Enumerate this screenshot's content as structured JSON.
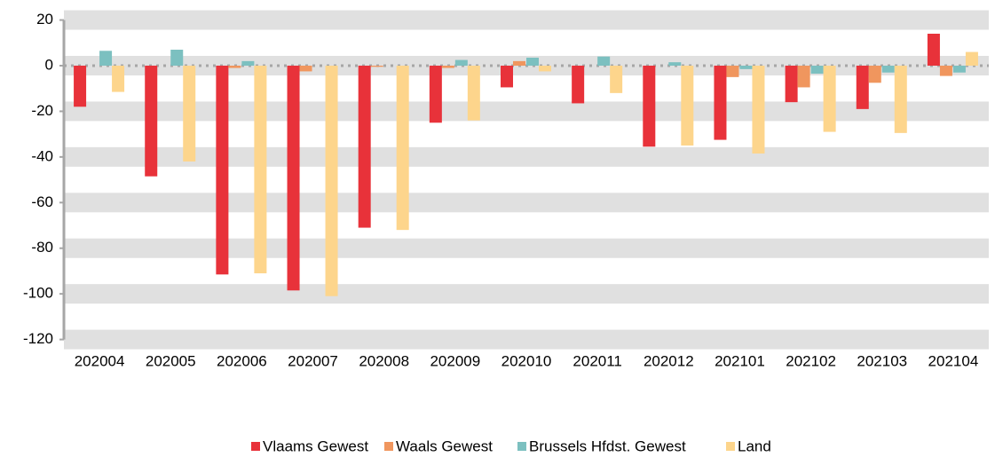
{
  "chart_data": {
    "type": "bar",
    "categories": [
      "202004",
      "202005",
      "202006",
      "202007",
      "202008",
      "202009",
      "202010",
      "202011",
      "202012",
      "202101",
      "202102",
      "202103",
      "202104"
    ],
    "series": [
      {
        "name": "Vlaams Gewest",
        "color": "#e8323a",
        "values": [
          -18,
          -48.5,
          -91.5,
          -98.5,
          -71,
          -25,
          -9.5,
          -16.5,
          -35.5,
          -32.5,
          -16,
          -19,
          14
        ]
      },
      {
        "name": "Waals Gewest",
        "color": "#f0965e",
        "values": [
          0,
          0,
          -1,
          -2.5,
          -0.5,
          -1,
          2,
          0,
          0,
          -5,
          -9.5,
          -7.5,
          -4.5
        ]
      },
      {
        "name": "Brussels Hfdst. Gewest",
        "color": "#7cc0c0",
        "values": [
          6.5,
          7,
          2,
          0,
          0,
          2.5,
          3.5,
          4,
          1.5,
          -1.5,
          -3.5,
          -3,
          -3
        ]
      },
      {
        "name": "Land",
        "color": "#fdd58c",
        "values": [
          -11.5,
          -42,
          -91,
          -101,
          -72,
          -24,
          -2.5,
          -12,
          -35,
          -38.5,
          -29,
          -29.5,
          6
        ]
      }
    ],
    "ylim": [
      -124,
      22
    ],
    "yticks": [
      -120,
      -100,
      -80,
      -60,
      -40,
      -20,
      0,
      20
    ],
    "grid": true,
    "legend": "bottom"
  }
}
